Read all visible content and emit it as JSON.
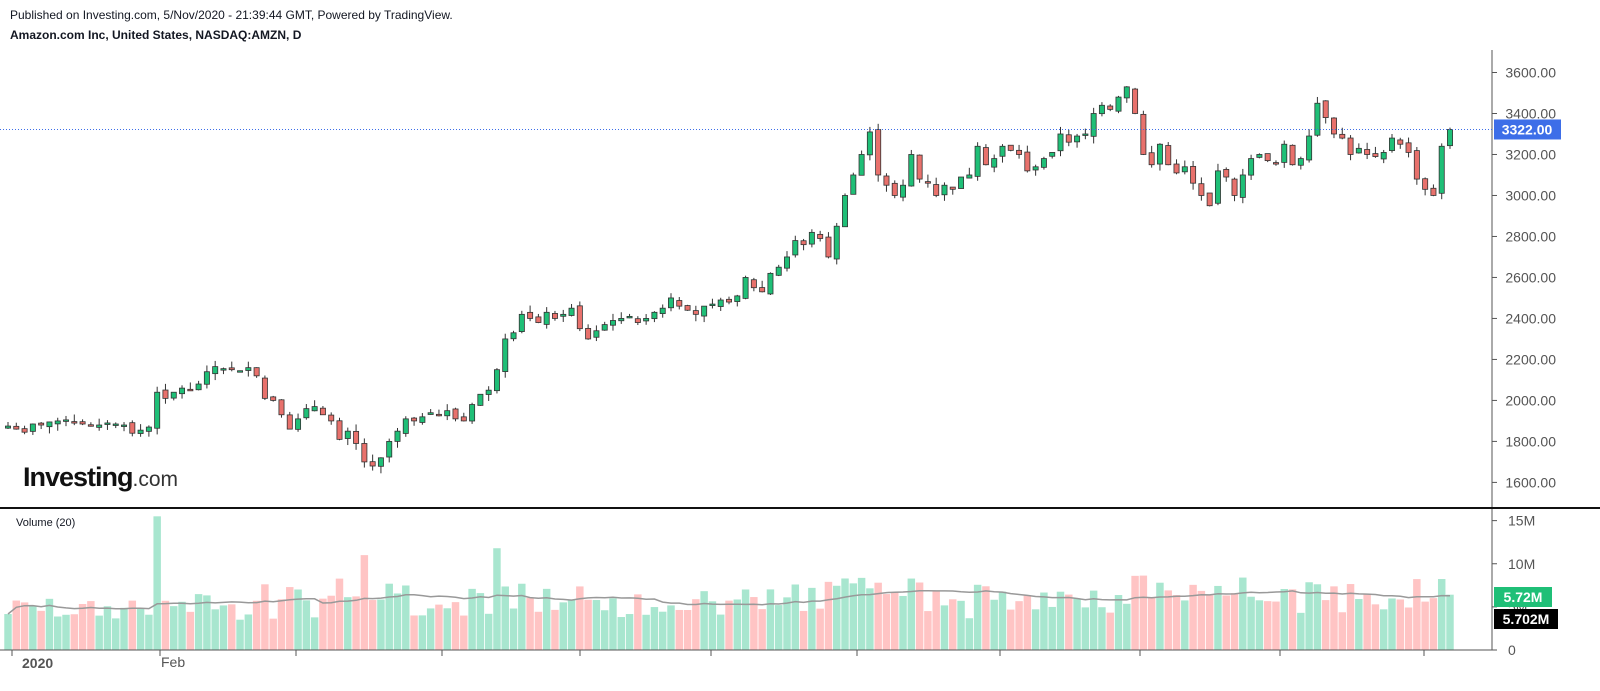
{
  "header": {
    "published": "Published on Investing.com, 5/Nov/2020 - 21:39:44 GMT, Powered by TradingView.",
    "symbol": "Amazon.com Inc, United States, NASDAQ:AMZN, D"
  },
  "logo": {
    "brand": "Investing",
    "suffix": ".com"
  },
  "colors": {
    "up": "#26a69a",
    "up_fill": "#1fbf77",
    "down": "#ef5350",
    "down_fill": "#e8716c",
    "vol_up": "#a8e6cf",
    "vol_down": "#ffc4c4",
    "ma": "#999999",
    "price_line": "#3d6ee8"
  },
  "chart_data": {
    "type": "candlestick",
    "price_axis": {
      "ylim": [
        1480,
        3700
      ],
      "ticks": [
        "1600.00",
        "1800.00",
        "2000.00",
        "2200.00",
        "2400.00",
        "2600.00",
        "2800.00",
        "3000.00",
        "3200.00",
        "3400.00",
        "3600.00"
      ]
    },
    "last_price": "3322.00",
    "last_price_value": 3322,
    "x_labels": [
      "2020",
      "Feb"
    ],
    "volume": {
      "title": "Volume (20)",
      "ylim": [
        0,
        16
      ],
      "ticks": [
        "0",
        "5M",
        "10M",
        "15M"
      ],
      "last_volume": "5.72M",
      "last_ma": "5.702M"
    },
    "closes": [
      1875,
      1860,
      1845,
      1885,
      1880,
      1895,
      1900,
      1905,
      1895,
      1885,
      1875,
      1880,
      1890,
      1885,
      1880,
      1840,
      1855,
      1870,
      2040,
      2010,
      2040,
      2060,
      2050,
      2080,
      2140,
      2165,
      2155,
      2150,
      2145,
      2160,
      2120,
      2010,
      2000,
      1930,
      1860,
      1910,
      1960,
      1970,
      1930,
      1900,
      1810,
      1850,
      1790,
      1700,
      1680,
      1720,
      1800,
      1850,
      1910,
      1900,
      1920,
      1940,
      1930,
      1950,
      1910,
      1900,
      1980,
      2030,
      2050,
      2150,
      2300,
      2330,
      2420,
      2400,
      2380,
      2430,
      2400,
      2420,
      2450,
      2350,
      2300,
      2340,
      2370,
      2390,
      2400,
      2410,
      2380,
      2400,
      2430,
      2450,
      2500,
      2460,
      2440,
      2420,
      2460,
      2470,
      2490,
      2480,
      2510,
      2600,
      2550,
      2530,
      2620,
      2650,
      2700,
      2780,
      2760,
      2820,
      2790,
      2700,
      2850,
      3000,
      3100,
      3200,
      3310,
      3100,
      3050,
      3000,
      3050,
      3200,
      3080,
      3060,
      3000,
      3050,
      3030,
      3090,
      3100,
      3240,
      3150,
      3180,
      3240,
      3220,
      3200,
      3120,
      3140,
      3180,
      3210,
      3300,
      3260,
      3290,
      3300,
      3400,
      3440,
      3420,
      3480,
      3530,
      3400,
      3200,
      3150,
      3250,
      3150,
      3110,
      3140,
      3060,
      3000,
      2950,
      3120,
      3090,
      3000,
      3100,
      3180,
      3200,
      3170,
      3160,
      3250,
      3150,
      3180,
      3290,
      3450,
      3380,
      3300,
      3280,
      3200,
      3230,
      3200,
      3190,
      3210,
      3280,
      3250,
      3210,
      3080,
      3030,
      3000,
      3240,
      3322
    ]
  }
}
